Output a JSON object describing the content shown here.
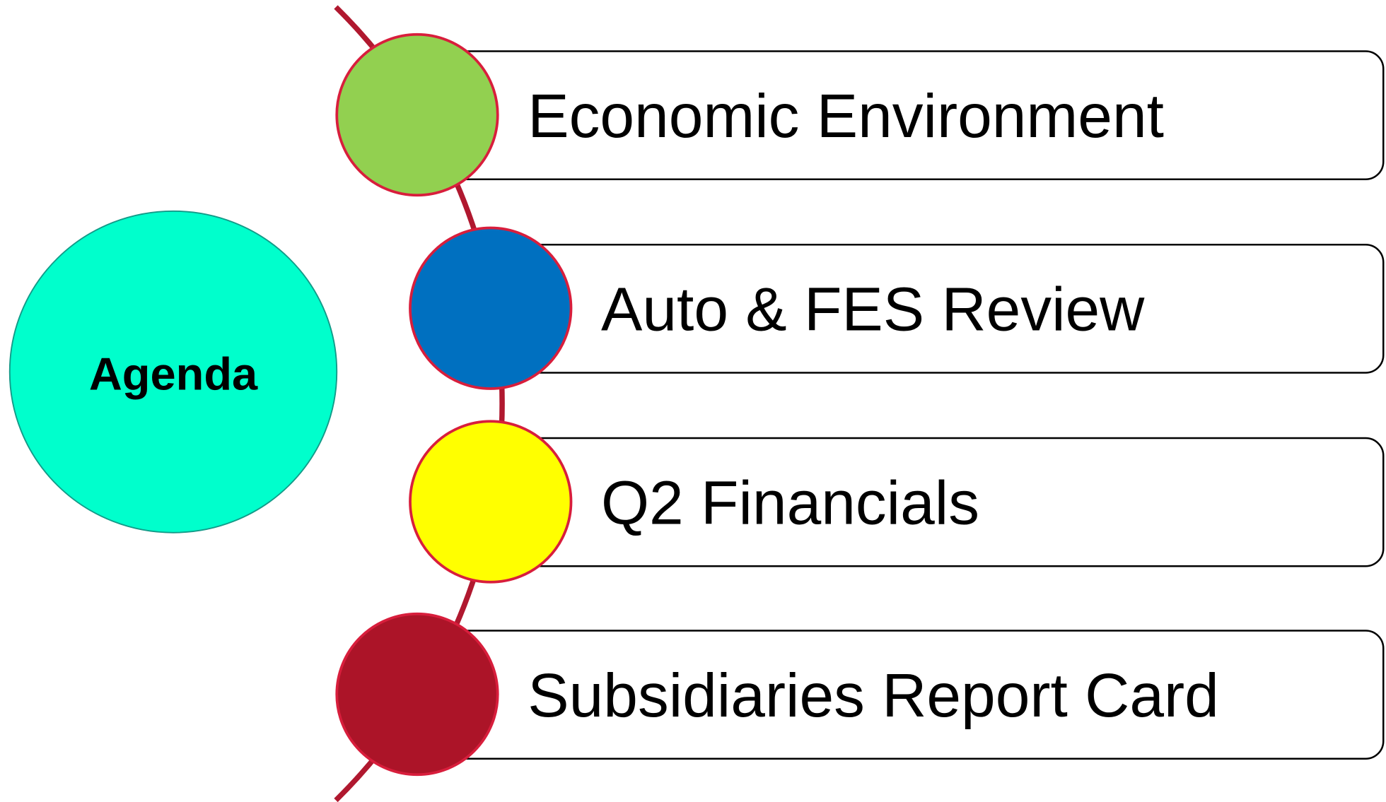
{
  "title": "Agenda",
  "items": [
    {
      "label": "Economic Environment"
    },
    {
      "label": "Auto & FES Review"
    },
    {
      "label": "Q2 Financials"
    },
    {
      "label": "Subsidiaries Report Card"
    }
  ]
}
